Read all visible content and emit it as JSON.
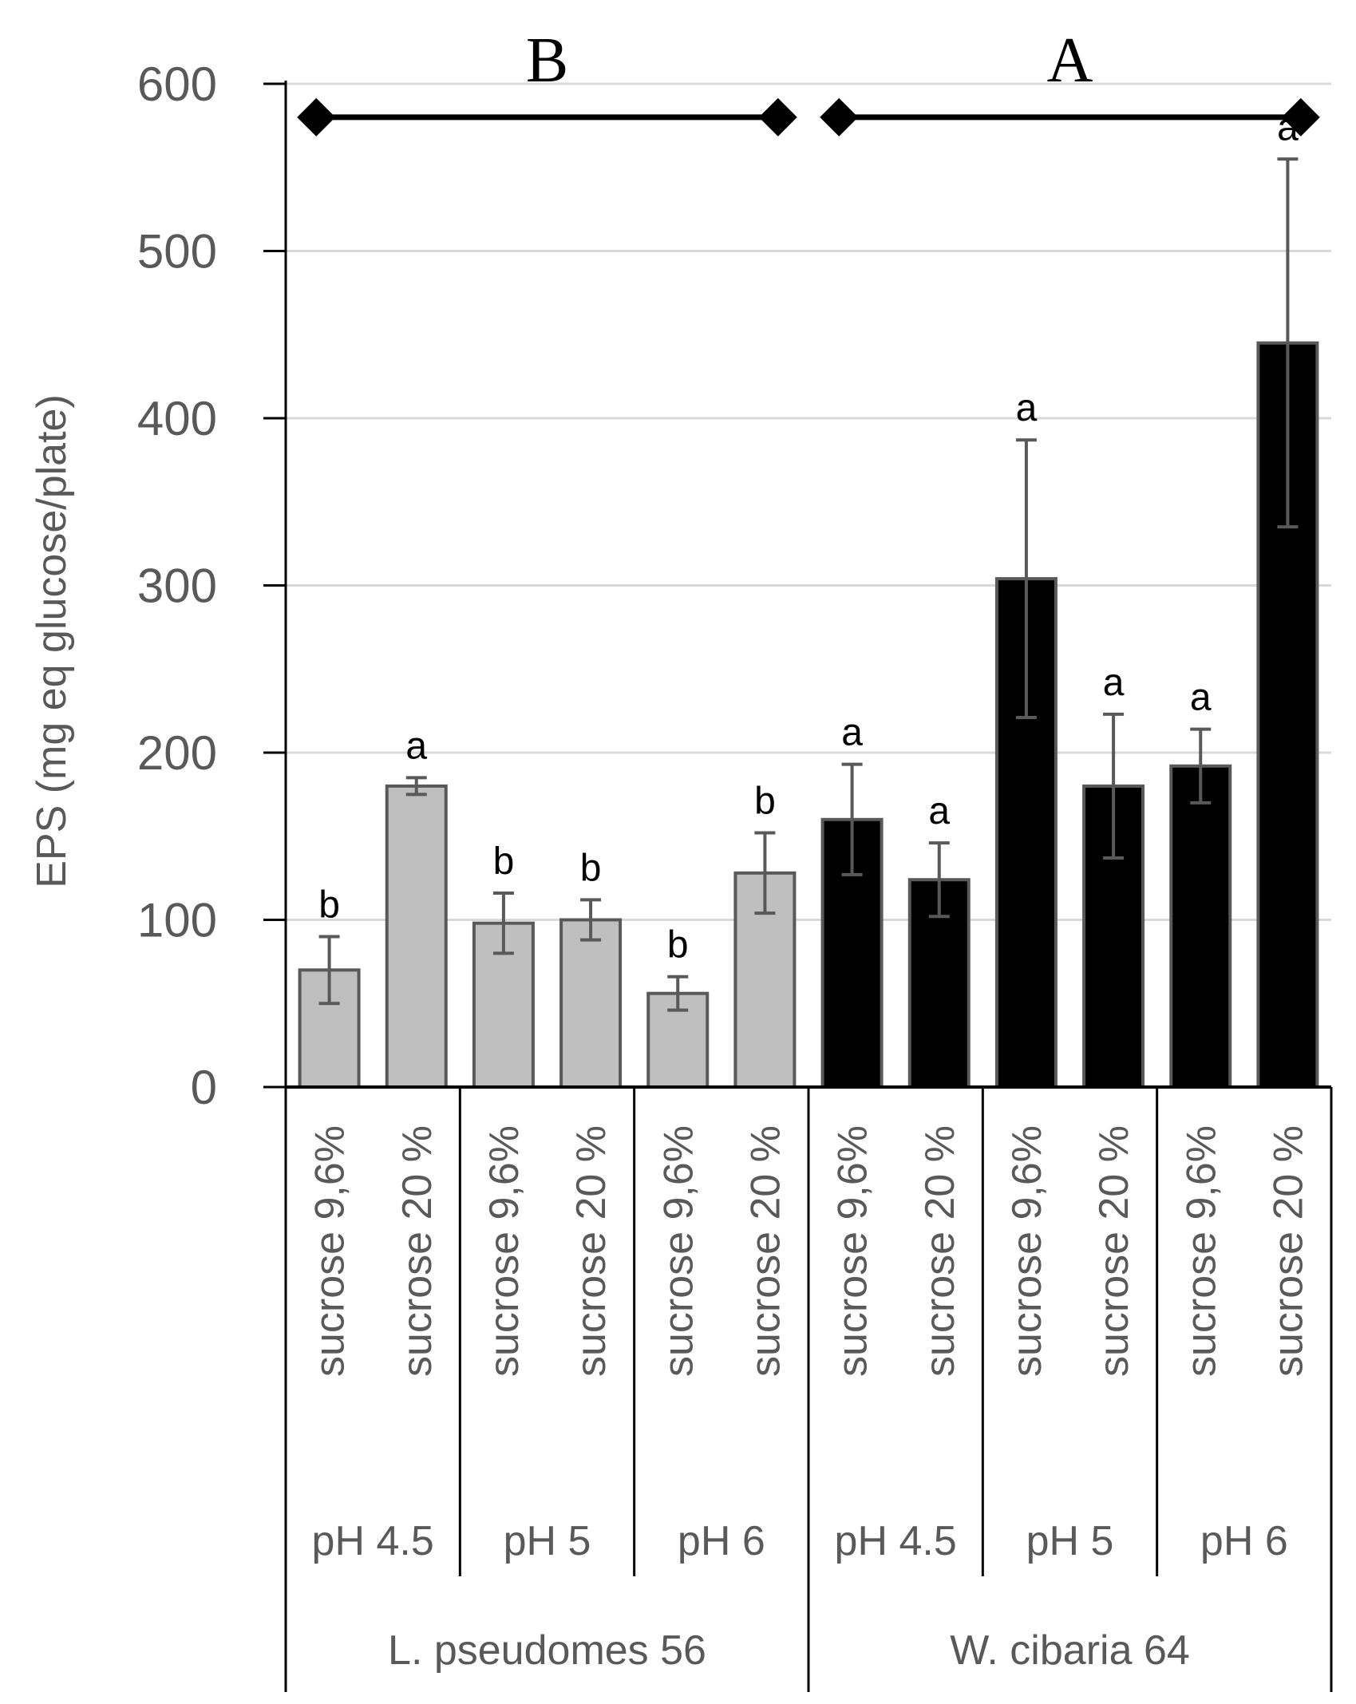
{
  "chart_data": {
    "type": "bar",
    "ylabel": "EPS (mg eq glucose/plate)",
    "ylim": [
      0,
      600
    ],
    "yticks": [
      0,
      100,
      200,
      300,
      400,
      500,
      600
    ],
    "grid": "horizontal",
    "categories": [
      "sucrose 9,6%",
      "sucrose 20 %",
      "sucrose 9,6%",
      "sucrose 20 %",
      "sucrose 9,6%",
      "sucrose 20 %",
      "sucrose 9,6%",
      "sucrose 20 %",
      "sucrose 9,6%",
      "sucrose 20 %",
      "sucrose 9,6%",
      "sucrose 20 %"
    ],
    "values": [
      70,
      180,
      98,
      100,
      56,
      128,
      160,
      124,
      304,
      180,
      192,
      445
    ],
    "errors": [
      20,
      5,
      18,
      12,
      10,
      24,
      33,
      22,
      83,
      43,
      22,
      110
    ],
    "significance": [
      "b",
      "a",
      "b",
      "b",
      "b",
      "b",
      "a",
      "a",
      "a",
      "a",
      "a",
      "a"
    ],
    "bar_colors": [
      "#bfbfbf",
      "#bfbfbf",
      "#bfbfbf",
      "#bfbfbf",
      "#bfbfbf",
      "#bfbfbf",
      "#000000",
      "#000000",
      "#000000",
      "#000000",
      "#000000",
      "#000000"
    ],
    "ph_groups": [
      {
        "label": "pH 4.5",
        "start": 0,
        "count": 2
      },
      {
        "label": "pH 5",
        "start": 2,
        "count": 2
      },
      {
        "label": "pH 6",
        "start": 4,
        "count": 2
      },
      {
        "label": "pH 4.5",
        "start": 6,
        "count": 2
      },
      {
        "label": "pH 5",
        "start": 8,
        "count": 2
      },
      {
        "label": "pH 6",
        "start": 10,
        "count": 2
      }
    ],
    "organisms": [
      {
        "label": "L. pseudomes 56",
        "start": 0,
        "count": 6,
        "letter": "B"
      },
      {
        "label": "W. cibaria 64",
        "start": 6,
        "count": 6,
        "letter": "A"
      }
    ],
    "bracket_y": 580
  }
}
